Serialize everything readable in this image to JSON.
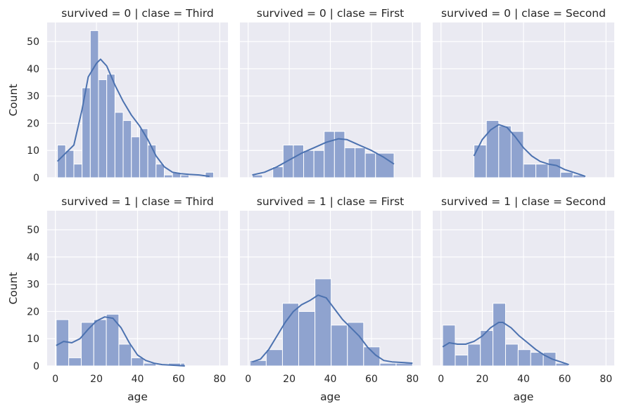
{
  "chart_data": [
    {
      "type": "histogram",
      "title": "survived = 0 | clase = Third",
      "bins": [
        [
          1,
          5,
          12
        ],
        [
          5,
          9,
          10
        ],
        [
          9,
          13,
          5
        ],
        [
          13,
          17,
          33
        ],
        [
          17,
          21,
          54
        ],
        [
          21,
          25,
          36
        ],
        [
          25,
          29,
          38
        ],
        [
          29,
          33,
          24
        ],
        [
          33,
          37,
          21
        ],
        [
          37,
          41,
          15
        ],
        [
          41,
          45,
          18
        ],
        [
          45,
          49,
          12
        ],
        [
          49,
          53,
          5
        ],
        [
          53,
          57,
          1
        ],
        [
          57,
          61,
          2
        ],
        [
          61,
          65,
          1
        ],
        [
          65,
          69,
          0
        ],
        [
          69,
          73,
          0
        ],
        [
          73,
          77,
          2
        ]
      ],
      "kde": [
        [
          1,
          6
        ],
        [
          5,
          9
        ],
        [
          9,
          12
        ],
        [
          13,
          25
        ],
        [
          16,
          37
        ],
        [
          20,
          42
        ],
        [
          22,
          43.5
        ],
        [
          25,
          41
        ],
        [
          29,
          34
        ],
        [
          33,
          28
        ],
        [
          37,
          23
        ],
        [
          41,
          19
        ],
        [
          45,
          14
        ],
        [
          49,
          8
        ],
        [
          53,
          4
        ],
        [
          57,
          2
        ],
        [
          61,
          1.5
        ],
        [
          65,
          1.2
        ],
        [
          70,
          1
        ],
        [
          75,
          0.5
        ]
      ],
      "ylabel": "Count",
      "xlabel": ""
    },
    {
      "type": "histogram",
      "title": "survived = 0 | clase = First",
      "bins": [
        [
          2,
          7,
          1
        ],
        [
          7,
          12,
          0
        ],
        [
          12,
          17,
          4
        ],
        [
          17,
          22,
          12
        ],
        [
          22,
          27,
          12
        ],
        [
          27,
          32,
          10
        ],
        [
          32,
          37,
          10
        ],
        [
          37,
          42,
          17
        ],
        [
          42,
          47,
          17
        ],
        [
          47,
          52,
          11
        ],
        [
          52,
          57,
          11
        ],
        [
          57,
          62,
          9
        ],
        [
          62,
          71,
          9
        ]
      ],
      "kde": [
        [
          2,
          1
        ],
        [
          8,
          2
        ],
        [
          14,
          4
        ],
        [
          20,
          6.5
        ],
        [
          26,
          9
        ],
        [
          32,
          11
        ],
        [
          38,
          13
        ],
        [
          44,
          14.3
        ],
        [
          48,
          14
        ],
        [
          54,
          12
        ],
        [
          60,
          10
        ],
        [
          66,
          7.5
        ],
        [
          71,
          5
        ]
      ],
      "ylabel": "",
      "xlabel": ""
    },
    {
      "type": "histogram",
      "title": "survived = 0 | clase = Second",
      "bins": [
        [
          16,
          22,
          12
        ],
        [
          22,
          28,
          21
        ],
        [
          28,
          34,
          19
        ],
        [
          34,
          40,
          17
        ],
        [
          40,
          46,
          5
        ],
        [
          46,
          52,
          5
        ],
        [
          52,
          58,
          7
        ],
        [
          58,
          64,
          2
        ],
        [
          64,
          70,
          1
        ]
      ],
      "kde": [
        [
          16,
          8
        ],
        [
          20,
          14
        ],
        [
          24,
          17.5
        ],
        [
          28,
          19.5
        ],
        [
          32,
          18.5
        ],
        [
          36,
          15
        ],
        [
          40,
          11
        ],
        [
          44,
          8
        ],
        [
          48,
          6
        ],
        [
          52,
          5
        ],
        [
          56,
          4.5
        ],
        [
          60,
          3
        ],
        [
          64,
          2
        ],
        [
          68,
          1
        ],
        [
          70,
          0.5
        ]
      ],
      "ylabel": "",
      "xlabel": ""
    },
    {
      "type": "histogram",
      "title": "survived = 1 | clase = Third",
      "bins": [
        [
          0.4,
          6.5,
          17
        ],
        [
          6.5,
          12.6,
          3
        ],
        [
          12.6,
          18.7,
          16
        ],
        [
          18.7,
          24.8,
          17
        ],
        [
          24.8,
          30.9,
          19
        ],
        [
          30.9,
          37,
          8
        ],
        [
          37,
          43,
          3
        ],
        [
          43,
          49,
          1
        ],
        [
          49,
          55,
          0
        ],
        [
          55,
          61,
          1
        ],
        [
          61,
          63,
          1
        ]
      ],
      "kde": [
        [
          0.4,
          7.5
        ],
        [
          4,
          9
        ],
        [
          8,
          8.5
        ],
        [
          12,
          10
        ],
        [
          16,
          13.5
        ],
        [
          20,
          16.5
        ],
        [
          24,
          18
        ],
        [
          28,
          17.5
        ],
        [
          32,
          14
        ],
        [
          36,
          8.5
        ],
        [
          40,
          4
        ],
        [
          44,
          2
        ],
        [
          48,
          1
        ],
        [
          52,
          0.5
        ],
        [
          56,
          0.3
        ],
        [
          63,
          0
        ]
      ],
      "ylabel": "Count",
      "xlabel": "age"
    },
    {
      "type": "histogram",
      "title": "survived = 1 | clase = First",
      "bins": [
        [
          0.9,
          8.8,
          2
        ],
        [
          8.8,
          16.7,
          6
        ],
        [
          16.7,
          24.6,
          23
        ],
        [
          24.6,
          32.5,
          20
        ],
        [
          32.5,
          40.4,
          32
        ],
        [
          40.4,
          48.3,
          15
        ],
        [
          48.3,
          56.2,
          16
        ],
        [
          56.2,
          64.1,
          7
        ],
        [
          64.1,
          72,
          1
        ],
        [
          72,
          80,
          1
        ]
      ],
      "kde": [
        [
          2,
          1.5
        ],
        [
          6,
          2.5
        ],
        [
          10,
          6
        ],
        [
          14,
          11
        ],
        [
          18,
          16
        ],
        [
          22,
          20
        ],
        [
          26,
          22.5
        ],
        [
          30,
          24
        ],
        [
          34,
          26
        ],
        [
          38,
          25
        ],
        [
          42,
          21
        ],
        [
          46,
          17
        ],
        [
          50,
          14
        ],
        [
          54,
          11
        ],
        [
          58,
          7
        ],
        [
          62,
          4
        ],
        [
          66,
          2
        ],
        [
          70,
          1.5
        ],
        [
          76,
          1.2
        ],
        [
          80,
          1
        ]
      ],
      "ylabel": "",
      "xlabel": "age"
    },
    {
      "type": "histogram",
      "title": "survived = 1 | clase = Second",
      "bins": [
        [
          0.8,
          6.9,
          15
        ],
        [
          6.9,
          13,
          4
        ],
        [
          13,
          19.1,
          8
        ],
        [
          19.1,
          25.2,
          13
        ],
        [
          25.2,
          31.3,
          23
        ],
        [
          31.3,
          37.4,
          8
        ],
        [
          37.4,
          43.5,
          6
        ],
        [
          43.5,
          49.6,
          5
        ],
        [
          49.6,
          55.7,
          5
        ],
        [
          55.7,
          61.8,
          1
        ]
      ],
      "kde": [
        [
          0.8,
          7
        ],
        [
          4,
          8.5
        ],
        [
          8,
          8
        ],
        [
          12,
          8
        ],
        [
          16,
          9
        ],
        [
          20,
          11
        ],
        [
          24,
          14
        ],
        [
          28,
          16
        ],
        [
          30,
          16
        ],
        [
          34,
          14
        ],
        [
          38,
          11
        ],
        [
          42,
          8.5
        ],
        [
          46,
          6
        ],
        [
          50,
          4
        ],
        [
          54,
          2.5
        ],
        [
          58,
          1.5
        ],
        [
          62,
          0.5
        ]
      ],
      "ylabel": "",
      "xlabel": "age"
    }
  ],
  "shared": {
    "xlim": [
      -4,
      84
    ],
    "ylim": [
      0,
      57
    ],
    "xticks": [
      "0",
      "20",
      "40",
      "60",
      "80"
    ],
    "yticks": [
      "0",
      "10",
      "20",
      "30",
      "40",
      "50"
    ],
    "grid": true,
    "bar_color": "#8fa3cf",
    "line_color": "#4c72b0",
    "panel_bg": "#eaeaf2"
  }
}
